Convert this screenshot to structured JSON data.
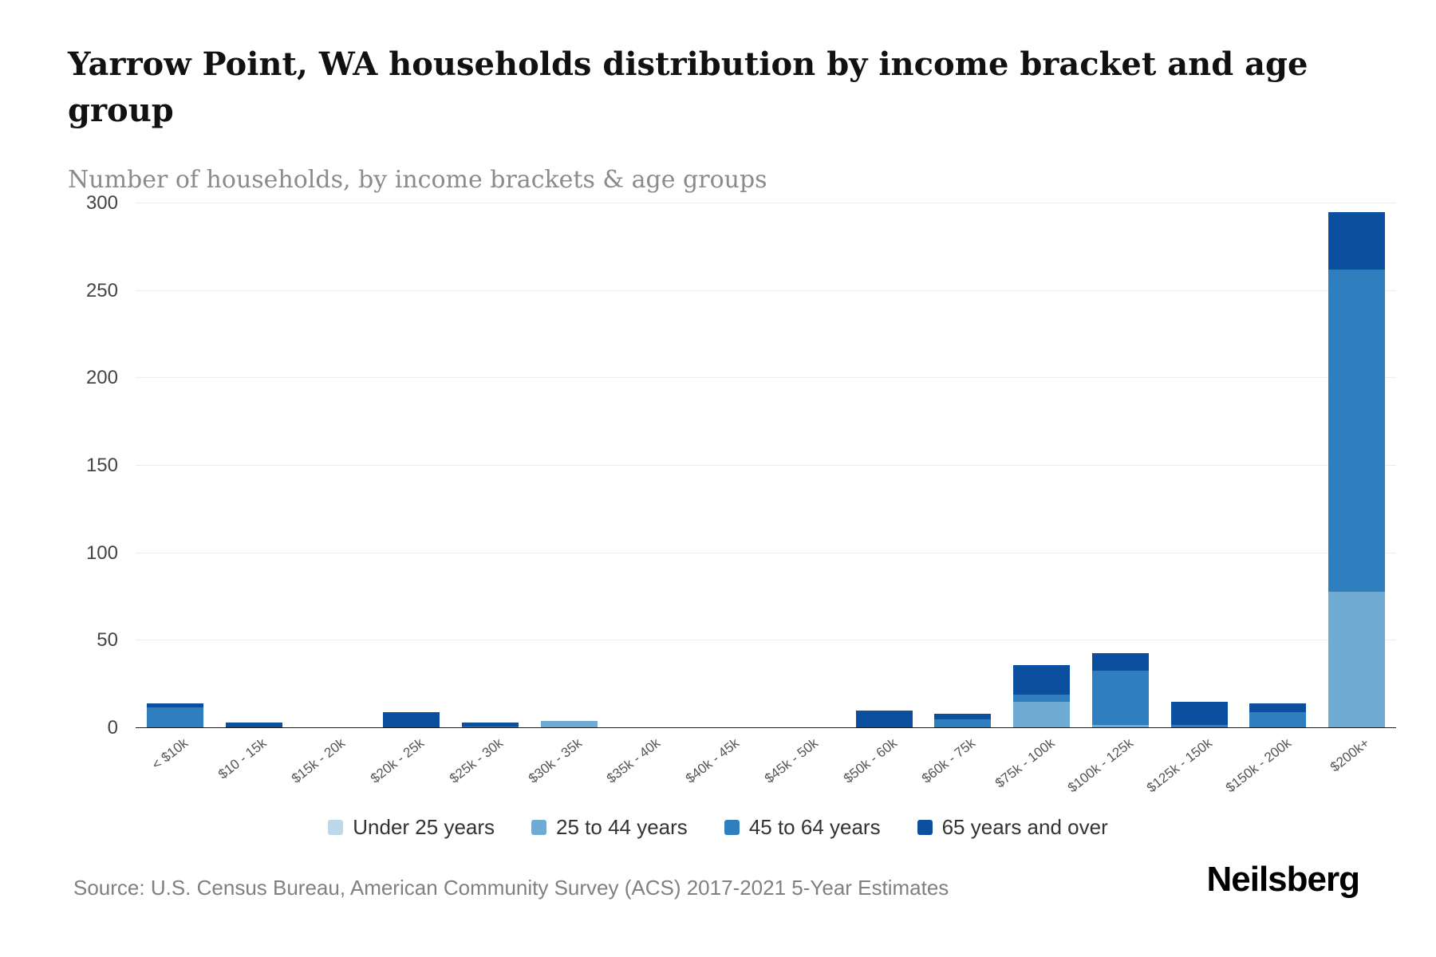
{
  "header": {
    "title": "Yarrow Point, WA households distribution by income bracket and age group",
    "subtitle": "Number of households, by income brackets & age groups"
  },
  "footer": {
    "source": "Source: U.S. Census Bureau, American Community Survey (ACS) 2017-2021 5-Year Estimates",
    "brand": "Neilsberg"
  },
  "chart_data": {
    "type": "bar",
    "stacked": true,
    "title": "Yarrow Point, WA households distribution by income bracket and age group",
    "subtitle": "Number of households, by income brackets & age groups",
    "xlabel": "",
    "ylabel": "",
    "ylim": [
      0,
      300
    ],
    "ytick_step": 50,
    "grid": "horizontal",
    "legend_position": "bottom",
    "categories": [
      "< $10k",
      "$10 - 15k",
      "$15k - 20k",
      "$20k - 25k",
      "$25k - 30k",
      "$30k - 35k",
      "$35k - 40k",
      "$40k - 45k",
      "$45k - 50k",
      "$50k - 60k",
      "$60k - 75k",
      "$75k - 100k",
      "$100k - 125k",
      "$125k - 150k",
      "$150k - 200k",
      "$200k+"
    ],
    "series": [
      {
        "name": "Under 25 years",
        "color": "#bdd8ea",
        "values": [
          0,
          0,
          0,
          0,
          0,
          0,
          0,
          0,
          0,
          0,
          0,
          0,
          0,
          0,
          0,
          0
        ]
      },
      {
        "name": "25 to 44 years",
        "color": "#6fabd2",
        "values": [
          0,
          0,
          0,
          0,
          0,
          4,
          0,
          0,
          0,
          0,
          0,
          15,
          2,
          0,
          0,
          78
        ]
      },
      {
        "name": "45 to 64 years",
        "color": "#2f7ebe",
        "values": [
          12,
          0,
          0,
          0,
          1,
          0,
          0,
          0,
          0,
          0,
          5,
          4,
          31,
          2,
          9,
          184
        ]
      },
      {
        "name": "65 years and over",
        "color": "#0b4f9e",
        "values": [
          2,
          3,
          0,
          9,
          2,
          0,
          0,
          0,
          0,
          10,
          3,
          17,
          10,
          13,
          5,
          33
        ]
      }
    ]
  }
}
